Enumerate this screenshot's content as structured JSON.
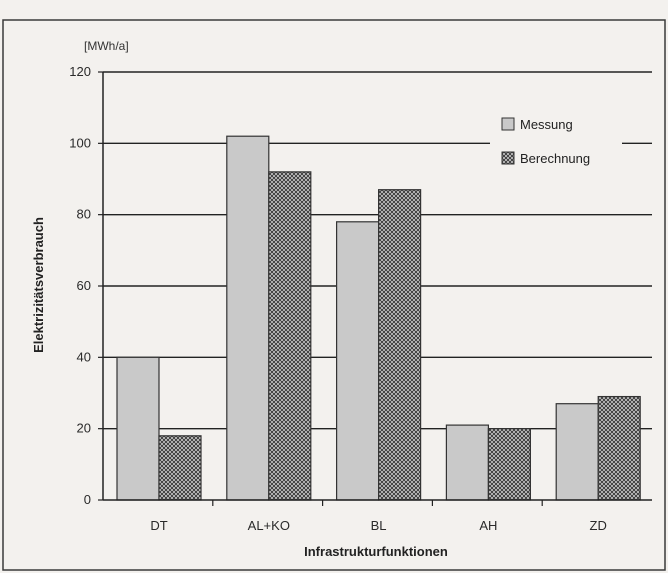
{
  "chart_data": {
    "type": "bar",
    "categories": [
      "DT",
      "AL+KO",
      "BL",
      "AH",
      "ZD"
    ],
    "series": [
      {
        "name": "Messung",
        "values": [
          40,
          102,
          78,
          21,
          27
        ],
        "color": "#c9c9c9",
        "pattern": "solid"
      },
      {
        "name": "Berechnung",
        "values": [
          18,
          92,
          87,
          20,
          29
        ],
        "color": "#8a8a8a",
        "pattern": "crosshatch"
      }
    ],
    "ylabel": "Elektrizitätsverbrauch",
    "xlabel": "Infrastrukturfunktionen",
    "unit": "[MWh/a]",
    "ylim": [
      0,
      120
    ],
    "yticks": [
      0,
      20,
      40,
      60,
      80,
      100,
      120
    ],
    "grid": true,
    "legend_position": "top-right"
  }
}
